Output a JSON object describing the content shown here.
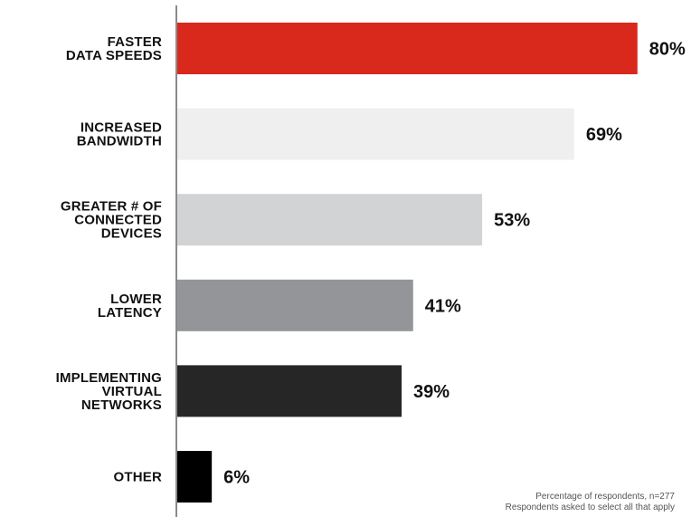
{
  "chart_data": {
    "type": "bar",
    "orientation": "horizontal",
    "categories": [
      [
        "FASTER",
        "DATA SPEEDS"
      ],
      [
        "INCREASED",
        "BANDWIDTH"
      ],
      [
        "GREATER # OF",
        "CONNECTED",
        "DEVICES"
      ],
      [
        "LOWER",
        "LATENCY"
      ],
      [
        "IMPLEMENTING",
        "VIRTUAL",
        "NETWORKS"
      ],
      [
        "OTHER"
      ]
    ],
    "values": [
      80,
      69,
      53,
      41,
      39,
      6
    ],
    "value_labels": [
      "80%",
      "69%",
      "53%",
      "41%",
      "39%",
      "6%"
    ],
    "colors": [
      "#d9291c",
      "#efefef",
      "#d2d3d5",
      "#939598",
      "#262626",
      "#000000"
    ],
    "xlim": [
      0,
      100
    ],
    "grid": false
  },
  "footnote": {
    "line1": "Percentage of respondents, n=277",
    "line2": "Respondents asked to select all that apply"
  }
}
